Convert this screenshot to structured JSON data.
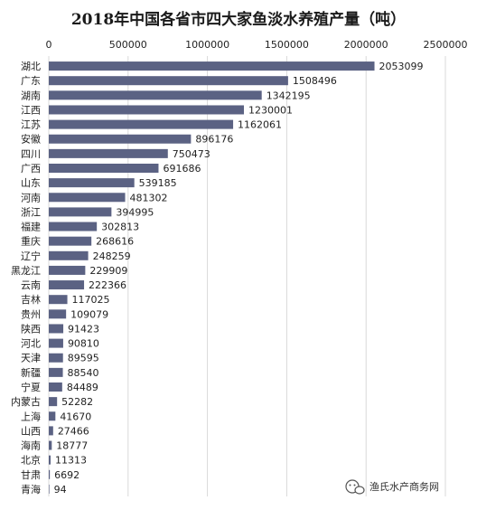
{
  "chart_data": {
    "type": "bar",
    "orientation": "horizontal",
    "title": "2018年中国各省市四大家鱼淡水养殖产量（吨）",
    "xlabel": "",
    "ylabel": "",
    "xlim": [
      0,
      2500000
    ],
    "ticks": [
      0,
      500000,
      1000000,
      1500000,
      2000000,
      2500000
    ],
    "tick_labels": [
      "0",
      "500000",
      "1000000",
      "1500000",
      "2000000",
      "2500000"
    ],
    "grid": true,
    "axis_position": "top",
    "bar_color": "#5b6283",
    "categories": [
      "湖北",
      "广东",
      "湖南",
      "江西",
      "江苏",
      "安徽",
      "四川",
      "广西",
      "山东",
      "河南",
      "浙江",
      "福建",
      "重庆",
      "辽宁",
      "黑龙江",
      "云南",
      "吉林",
      "贵州",
      "陕西",
      "河北",
      "天津",
      "新疆",
      "宁夏",
      "内蒙古",
      "上海",
      "山西",
      "海南",
      "北京",
      "甘肃",
      "青海"
    ],
    "values": [
      2053099,
      1508496,
      1342195,
      1230001,
      1162061,
      896176,
      750473,
      691686,
      539185,
      481302,
      394995,
      302813,
      268616,
      248259,
      229909,
      222366,
      117025,
      109079,
      91423,
      90810,
      89595,
      88540,
      84489,
      52282,
      41670,
      27466,
      18777,
      11313,
      6692,
      94
    ]
  },
  "watermark": {
    "text": "渔氏水产商务网",
    "icon": "wechat-icon"
  }
}
